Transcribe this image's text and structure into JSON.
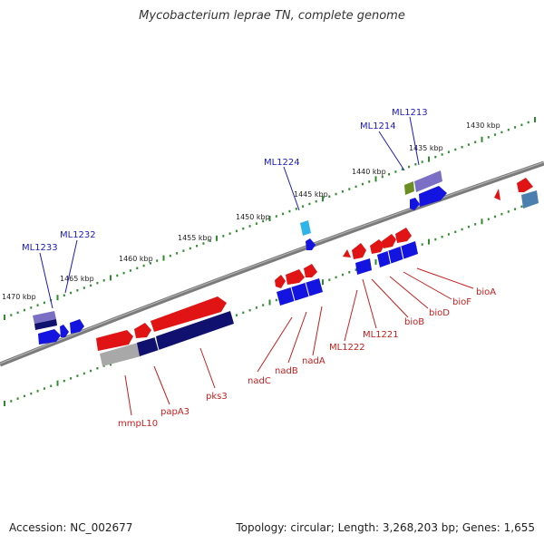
{
  "title": "Mycobacterium leprae TN, complete genome",
  "accession": "Accession: NC_002677",
  "summary": "Topology: circular; Length: 3,268,203 bp; Genes: 1,655",
  "colors": {
    "backbone": "#7b7b7b",
    "tick": "#2e8b2e",
    "plus_strand": "#e01414",
    "minus_strand": "#1414e0",
    "dark_navy": "#10106e",
    "purple": "#7a6fc4",
    "olive": "#6b8e23",
    "cyan": "#2eb4e6",
    "steel": "#4a7fb0",
    "gray": "#a8a8a8",
    "top_label": "#1b1bbf",
    "bottom_label": "#c41f1f"
  },
  "scale_labels": [
    "1430 kbp",
    "1435 kbp",
    "1440 kbp",
    "1445 kbp",
    "1450 kbp",
    "1455 kbp",
    "1460 kbp",
    "1465 kbp",
    "1470 kbp"
  ],
  "top_gene_labels": [
    "ML1213",
    "ML1214",
    "ML1224",
    "ML1232",
    "ML1233"
  ],
  "bottom_gene_labels": [
    "bioA",
    "bioF",
    "bioD",
    "bioB",
    "ML1221",
    "ML1222",
    "nadA",
    "nadB",
    "nadC",
    "pks3",
    "papA3",
    "mmpL10"
  ]
}
